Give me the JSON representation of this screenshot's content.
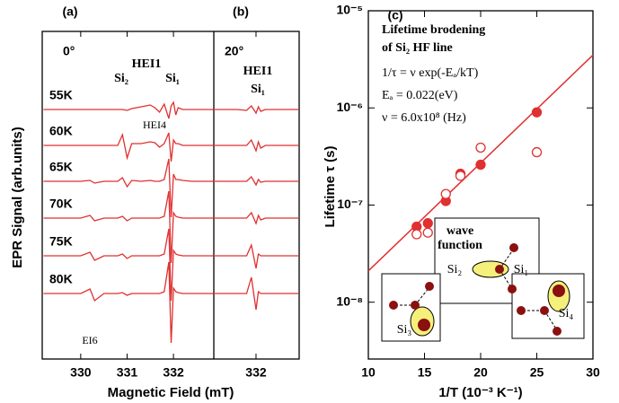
{
  "chart_data": [
    {
      "type": "line",
      "panel_label": "(a)",
      "y_label": "EPR Signal (arb.units)",
      "x_label": "Magnetic Field (mT)",
      "xlim": [
        329.17,
        332.87
      ],
      "xticks": [
        330,
        331,
        332
      ],
      "color": "#e03030",
      "annotations": [
        "0°",
        "HEI1",
        "Si₂",
        "Si₁",
        "HEI4",
        "EI6"
      ],
      "x": [
        329.2,
        329.6,
        330.0,
        330.2,
        330.3,
        330.5,
        330.8,
        330.9,
        331.0,
        331.1,
        331.3,
        331.5,
        331.6,
        331.7,
        331.8,
        331.9,
        331.95,
        332.0,
        332.05,
        332.1,
        332.2,
        332.4,
        332.6,
        332.85
      ],
      "series": [
        {
          "name": "55K",
          "values": [
            0,
            0,
            0,
            0,
            0,
            0,
            0,
            0,
            -1,
            1,
            3,
            5,
            2,
            -3,
            6,
            -10,
            4,
            8,
            -6,
            2,
            0,
            0,
            0,
            0
          ]
        },
        {
          "name": "60K",
          "values": [
            0,
            0,
            0,
            0,
            0,
            0,
            0,
            12,
            -14,
            2,
            2,
            4,
            3,
            -2,
            2,
            14,
            -18,
            6,
            2,
            2,
            0,
            0,
            0,
            0
          ]
        },
        {
          "name": "65K",
          "values": [
            0,
            0,
            0,
            1,
            -2,
            0,
            0,
            4,
            -6,
            1,
            0,
            1,
            0,
            0,
            2,
            25,
            -40,
            8,
            2,
            2,
            1,
            0,
            0,
            0
          ]
        },
        {
          "name": "70K",
          "values": [
            0,
            0,
            0,
            3,
            -3,
            0,
            0,
            2,
            -3,
            0,
            0,
            0,
            0,
            0,
            2,
            30,
            -50,
            6,
            2,
            1,
            0,
            0,
            0,
            0
          ]
        },
        {
          "name": "75K",
          "values": [
            0,
            0,
            0,
            4,
            -5,
            0,
            0,
            2,
            -3,
            0,
            0,
            0,
            0,
            0,
            2,
            30,
            -50,
            6,
            2,
            1,
            0,
            0,
            0,
            0
          ]
        },
        {
          "name": "80K",
          "values": [
            0,
            0,
            0,
            5,
            -8,
            0,
            0,
            1,
            -2,
            0,
            0,
            0,
            0,
            0,
            2,
            35,
            -55,
            6,
            2,
            1,
            0,
            0,
            0,
            0
          ]
        }
      ]
    },
    {
      "type": "line",
      "panel_label": "(b)",
      "xlim": [
        331.1,
        332.92
      ],
      "xticks": [
        332
      ],
      "color": "#e03030",
      "annotations": [
        "20°",
        "HEI1",
        "Si₁"
      ],
      "x": [
        331.1,
        331.6,
        331.8,
        331.9,
        332.0,
        332.05,
        332.1,
        332.2,
        332.4,
        332.9
      ],
      "series": [
        {
          "values": [
            0,
            0,
            -1,
            4,
            -4,
            3,
            -2,
            0,
            0,
            0
          ]
        },
        {
          "values": [
            0,
            0,
            0,
            6,
            -6,
            4,
            -3,
            0,
            0,
            0
          ]
        },
        {
          "values": [
            0,
            0,
            0,
            5,
            -4,
            2,
            -1,
            0,
            0,
            0
          ]
        },
        {
          "values": [
            0,
            0,
            0,
            6,
            -6,
            3,
            -2,
            0,
            0,
            0
          ]
        },
        {
          "values": [
            0,
            0,
            0,
            12,
            -14,
            2,
            0,
            0,
            0,
            0
          ]
        },
        {
          "values": [
            0,
            0,
            0,
            18,
            -18,
            2,
            0,
            0,
            0,
            0
          ]
        }
      ]
    },
    {
      "type": "scatter",
      "panel_label": "(c)",
      "y_label": "Lifetime τ (s)",
      "x_label": "1/T (10⁻³ K⁻¹)",
      "xlim": [
        10,
        30
      ],
      "xticks": [
        10,
        15,
        20,
        25,
        30
      ],
      "log_y": true,
      "ylim": [
        2.6e-09,
        1e-05
      ],
      "yticks": [
        {
          "value": 1e-05,
          "label": "10⁻⁵"
        },
        {
          "value": 1e-06,
          "label": "10⁻⁶"
        },
        {
          "value": 1e-07,
          "label": "10⁻⁷"
        },
        {
          "value": 1e-08,
          "label": "10⁻⁸"
        }
      ],
      "annotations": [
        "Lifetime brodening",
        "of Si₂ HF line",
        "1/τ = ν exp(-Eₐ/kT)",
        "Eₐ = 0.022(eV)",
        "ν = 6.0x10⁸ (Hz)"
      ],
      "inset_labels": [
        "wave",
        "function",
        "Si₂",
        "Si₁",
        "Si₃",
        "Si₄"
      ],
      "series": [
        {
          "color": "#e03030",
          "marker": "filled",
          "x": [
            14.3,
            15.3,
            16.9,
            18.2,
            20,
            25
          ],
          "values": [
            6e-08,
            6.5e-08,
            1.1e-07,
            2.1e-07,
            2.6e-07,
            9e-07
          ]
        },
        {
          "color": "#e03030",
          "marker": "open",
          "x": [
            14.3,
            15.3,
            16.9,
            18.2,
            20,
            25
          ],
          "values": [
            5e-08,
            5.2e-08,
            1.3e-07,
            2e-07,
            3.9e-07,
            3.5e-07
          ]
        }
      ],
      "fit": {
        "color": "#e03030",
        "x": [
          10,
          30
        ],
        "values": [
          2.1e-08,
          3.5e-06
        ]
      }
    }
  ]
}
